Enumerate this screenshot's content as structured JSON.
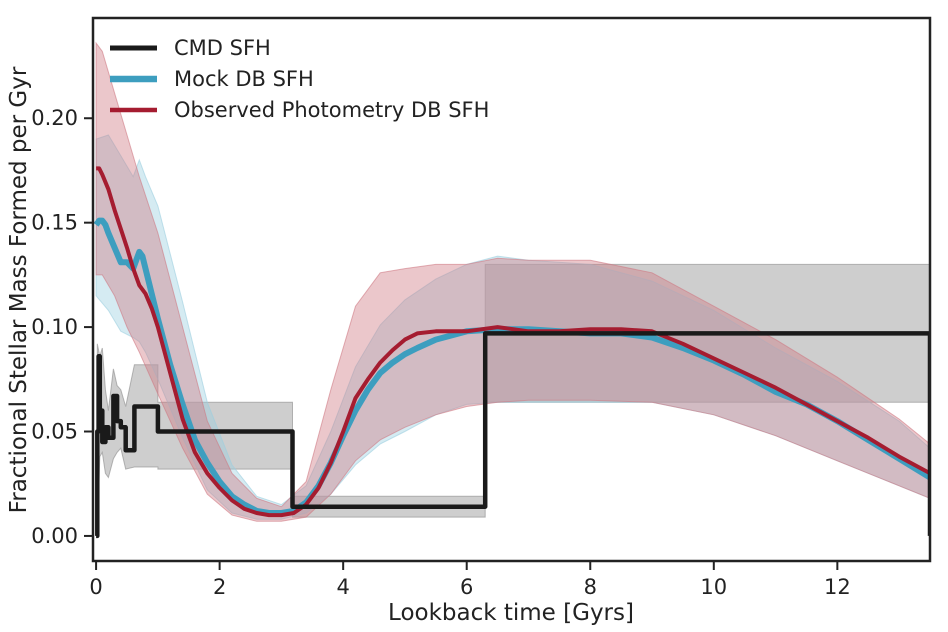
{
  "chart_data": {
    "type": "line",
    "xlabel": "Lookback time [Gyrs]",
    "ylabel": "Fractional Stellar Mass Formed per Gyr",
    "xlim": [
      -0.05,
      13.5
    ],
    "ylim": [
      -0.012,
      0.248
    ],
    "grid": false,
    "legend_position": "top-left",
    "x_ticks": [
      0,
      2,
      4,
      6,
      8,
      10,
      12
    ],
    "x_tick_labels": [
      "0",
      "2",
      "4",
      "6",
      "8",
      "10",
      "12"
    ],
    "y_ticks": [
      0.0,
      0.05,
      0.1,
      0.15,
      0.2
    ],
    "y_tick_labels": [
      "0.00",
      "0.05",
      "0.10",
      "0.15",
      "0.20"
    ],
    "colors": {
      "cmd": "#1a1a1a",
      "cmd_band": "#8a8a8a",
      "mock": "#3d9ebf",
      "mock_band": "#9ccfe0",
      "obs": "#a51c30",
      "obs_band": "#cf7a84"
    },
    "series": [
      {
        "name": "CMD SFH",
        "key": "cmd",
        "x": [
          0,
          0.02,
          0.02,
          0.04,
          0.04,
          0.06,
          0.06,
          0.1,
          0.1,
          0.15,
          0.15,
          0.2,
          0.2,
          0.28,
          0.28,
          0.34,
          0.34,
          0.4,
          0.4,
          0.48,
          0.48,
          0.62,
          0.62,
          1.0,
          1.0,
          3.18,
          3.18,
          6.3,
          6.3,
          13.5,
          13.5
        ],
        "y": [
          0,
          0,
          0.05,
          0.05,
          0.086,
          0.086,
          0.06,
          0.06,
          0.045,
          0.045,
          0.052,
          0.052,
          0.047,
          0.047,
          0.067,
          0.067,
          0.055,
          0.055,
          0.052,
          0.052,
          0.041,
          0.041,
          0.062,
          0.062,
          0.05,
          0.05,
          0.014,
          0.014,
          0.097,
          0.097,
          0
        ]
      },
      {
        "name": "Mock DB SFH",
        "key": "mock",
        "x": [
          0,
          0.05,
          0.1,
          0.15,
          0.2,
          0.3,
          0.4,
          0.5,
          0.6,
          0.65,
          0.7,
          0.75,
          0.8,
          0.9,
          1.0,
          1.2,
          1.4,
          1.6,
          1.8,
          2.0,
          2.2,
          2.4,
          2.6,
          2.8,
          3.0,
          3.2,
          3.4,
          3.6,
          3.8,
          4.0,
          4.2,
          4.4,
          4.6,
          4.8,
          5.0,
          5.2,
          5.5,
          6.0,
          6.5,
          7.0,
          7.5,
          8.0,
          8.5,
          9.0,
          9.5,
          10.0,
          10.5,
          11.0,
          11.5,
          12.0,
          12.5,
          13.0,
          13.5
        ],
        "y": [
          0.149,
          0.151,
          0.151,
          0.149,
          0.145,
          0.138,
          0.131,
          0.131,
          0.128,
          0.132,
          0.136,
          0.134,
          0.128,
          0.116,
          0.104,
          0.082,
          0.063,
          0.046,
          0.035,
          0.026,
          0.019,
          0.015,
          0.012,
          0.011,
          0.011,
          0.012,
          0.016,
          0.024,
          0.035,
          0.048,
          0.06,
          0.07,
          0.078,
          0.083,
          0.087,
          0.09,
          0.094,
          0.098,
          0.099,
          0.099,
          0.098,
          0.097,
          0.097,
          0.095,
          0.09,
          0.084,
          0.077,
          0.069,
          0.063,
          0.055,
          0.046,
          0.037,
          0.028
        ]
      },
      {
        "name": "Observed Photometry DB SFH",
        "key": "obs",
        "x": [
          0,
          0.05,
          0.1,
          0.2,
          0.3,
          0.4,
          0.5,
          0.6,
          0.7,
          0.8,
          0.9,
          1.0,
          1.2,
          1.4,
          1.6,
          1.8,
          2.0,
          2.2,
          2.4,
          2.6,
          2.8,
          3.0,
          3.2,
          3.4,
          3.6,
          3.8,
          4.0,
          4.2,
          4.4,
          4.6,
          4.8,
          5.0,
          5.2,
          5.5,
          6.0,
          6.5,
          7.0,
          7.5,
          8.0,
          8.5,
          9.0,
          9.5,
          10.0,
          10.5,
          11.0,
          11.5,
          12.0,
          12.5,
          13.0,
          13.5
        ],
        "y": [
          0.176,
          0.176,
          0.173,
          0.166,
          0.156,
          0.147,
          0.138,
          0.128,
          0.12,
          0.116,
          0.109,
          0.1,
          0.078,
          0.056,
          0.04,
          0.03,
          0.023,
          0.017,
          0.013,
          0.011,
          0.01,
          0.01,
          0.011,
          0.015,
          0.023,
          0.035,
          0.05,
          0.066,
          0.075,
          0.083,
          0.089,
          0.094,
          0.097,
          0.098,
          0.098,
          0.1,
          0.098,
          0.098,
          0.099,
          0.099,
          0.098,
          0.092,
          0.085,
          0.078,
          0.071,
          0.063,
          0.055,
          0.047,
          0.038,
          0.03
        ]
      }
    ],
    "bands": [
      {
        "name": "CMD SFH uncertainty",
        "key": "cmd_band",
        "x": [
          0.02,
          0.06,
          0.1,
          0.15,
          0.2,
          0.28,
          0.34,
          0.4,
          0.48,
          0.62,
          1.0,
          1.0,
          3.18,
          3.18,
          6.3,
          6.3,
          13.5
        ],
        "lo": [
          0.0,
          0.038,
          0.04,
          0.03,
          0.028,
          0.037,
          0.04,
          0.042,
          0.032,
          0.033,
          0.033,
          0.032,
          0.032,
          0.009,
          0.009,
          0.064,
          0.064
        ],
        "hi": [
          0.092,
          0.086,
          0.09,
          0.07,
          0.06,
          0.08,
          0.072,
          0.07,
          0.062,
          0.082,
          0.082,
          0.064,
          0.064,
          0.019,
          0.019,
          0.13,
          0.13
        ]
      },
      {
        "name": "Mock DB SFH uncertainty",
        "key": "mock_band",
        "x": [
          0,
          0.2,
          0.4,
          0.6,
          0.7,
          0.8,
          1.0,
          1.4,
          1.8,
          2.2,
          2.6,
          3.0,
          3.4,
          3.8,
          4.2,
          4.6,
          5.0,
          5.5,
          6.0,
          6.5,
          7.0,
          8.0,
          9.0,
          10.0,
          11.0,
          12.0,
          13.0,
          13.5
        ],
        "lo": [
          0.115,
          0.108,
          0.098,
          0.095,
          0.093,
          0.088,
          0.075,
          0.047,
          0.022,
          0.011,
          0.008,
          0.008,
          0.011,
          0.02,
          0.034,
          0.044,
          0.05,
          0.058,
          0.063,
          0.064,
          0.064,
          0.064,
          0.064,
          0.058,
          0.048,
          0.036,
          0.024,
          0.018
        ],
        "hi": [
          0.19,
          0.192,
          0.182,
          0.172,
          0.18,
          0.172,
          0.158,
          0.112,
          0.064,
          0.034,
          0.019,
          0.015,
          0.024,
          0.05,
          0.081,
          0.101,
          0.113,
          0.123,
          0.13,
          0.134,
          0.132,
          0.13,
          0.122,
          0.108,
          0.09,
          0.074,
          0.055,
          0.042
        ]
      },
      {
        "name": "Observed Photometry DB SFH uncertainty",
        "key": "obs_band",
        "x": [
          0,
          0.1,
          0.3,
          0.5,
          0.7,
          1.0,
          1.4,
          1.8,
          2.2,
          2.6,
          3.0,
          3.4,
          3.8,
          4.2,
          4.6,
          5.0,
          5.5,
          6.0,
          6.5,
          7.0,
          8.0,
          9.0,
          10.0,
          11.0,
          12.0,
          13.0,
          13.5
        ],
        "lo": [
          0.125,
          0.125,
          0.115,
          0.1,
          0.088,
          0.068,
          0.042,
          0.02,
          0.01,
          0.007,
          0.007,
          0.009,
          0.02,
          0.036,
          0.046,
          0.052,
          0.058,
          0.062,
          0.064,
          0.065,
          0.065,
          0.064,
          0.058,
          0.048,
          0.036,
          0.024,
          0.018
        ],
        "hi": [
          0.236,
          0.232,
          0.212,
          0.192,
          0.172,
          0.145,
          0.1,
          0.055,
          0.03,
          0.018,
          0.014,
          0.026,
          0.07,
          0.11,
          0.126,
          0.128,
          0.13,
          0.13,
          0.133,
          0.132,
          0.132,
          0.126,
          0.11,
          0.094,
          0.076,
          0.056,
          0.044
        ]
      }
    ],
    "legend": [
      {
        "label": "CMD SFH",
        "key": "cmd"
      },
      {
        "label": "Mock DB SFH",
        "key": "mock"
      },
      {
        "label": "Observed Photometry DB SFH",
        "key": "obs"
      }
    ]
  }
}
